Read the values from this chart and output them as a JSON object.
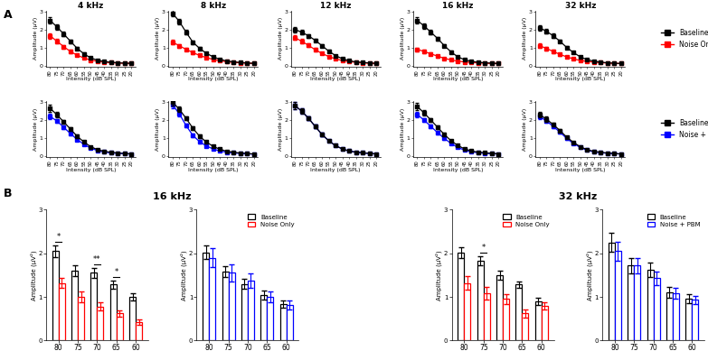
{
  "freqs_top": [
    "4 kHz",
    "8 kHz",
    "12 kHz",
    "16 kHz",
    "32 kHz"
  ],
  "intensity_x": [
    80,
    75,
    70,
    65,
    60,
    55,
    50,
    45,
    40,
    35,
    30,
    25,
    20
  ],
  "row1_baseline": [
    [
      2.5,
      2.15,
      1.75,
      1.35,
      0.95,
      0.65,
      0.42,
      0.3,
      0.22,
      0.18,
      0.15,
      0.13,
      0.12
    ],
    [
      2.9,
      2.45,
      1.85,
      1.3,
      0.95,
      0.68,
      0.48,
      0.35,
      0.25,
      0.2,
      0.17,
      0.14,
      0.12
    ],
    [
      2.0,
      1.85,
      1.65,
      1.4,
      1.1,
      0.8,
      0.55,
      0.38,
      0.27,
      0.2,
      0.17,
      0.14,
      0.12
    ],
    [
      2.5,
      2.2,
      1.85,
      1.5,
      1.1,
      0.75,
      0.48,
      0.32,
      0.23,
      0.18,
      0.15,
      0.13,
      0.11
    ],
    [
      2.1,
      1.9,
      1.65,
      1.35,
      1.0,
      0.72,
      0.48,
      0.33,
      0.24,
      0.19,
      0.15,
      0.13,
      0.11
    ]
  ],
  "row1_noise": [
    [
      1.65,
      1.35,
      1.05,
      0.78,
      0.57,
      0.42,
      0.3,
      0.24,
      0.19,
      0.16,
      0.14,
      0.13,
      0.12
    ],
    [
      1.3,
      1.1,
      0.9,
      0.72,
      0.56,
      0.44,
      0.34,
      0.27,
      0.21,
      0.18,
      0.15,
      0.13,
      0.12
    ],
    [
      1.55,
      1.35,
      1.12,
      0.88,
      0.67,
      0.5,
      0.37,
      0.28,
      0.22,
      0.18,
      0.15,
      0.13,
      0.12
    ],
    [
      0.9,
      0.78,
      0.65,
      0.52,
      0.4,
      0.31,
      0.24,
      0.2,
      0.17,
      0.15,
      0.13,
      0.12,
      0.11
    ],
    [
      1.1,
      0.95,
      0.78,
      0.62,
      0.48,
      0.37,
      0.28,
      0.23,
      0.19,
      0.16,
      0.14,
      0.12,
      0.11
    ]
  ],
  "row1_baseline_err": [
    [
      0.18,
      0.15,
      0.12,
      0.1,
      0.08,
      0.06,
      0.04,
      0.03,
      0.02,
      0.02,
      0.02,
      0.01,
      0.01
    ],
    [
      0.18,
      0.15,
      0.12,
      0.1,
      0.08,
      0.06,
      0.04,
      0.03,
      0.02,
      0.02,
      0.01,
      0.01,
      0.01
    ],
    [
      0.15,
      0.12,
      0.1,
      0.09,
      0.07,
      0.06,
      0.04,
      0.03,
      0.02,
      0.02,
      0.01,
      0.01,
      0.01
    ],
    [
      0.18,
      0.15,
      0.12,
      0.1,
      0.08,
      0.06,
      0.04,
      0.03,
      0.02,
      0.02,
      0.01,
      0.01,
      0.01
    ],
    [
      0.15,
      0.13,
      0.11,
      0.09,
      0.07,
      0.05,
      0.04,
      0.03,
      0.02,
      0.02,
      0.01,
      0.01,
      0.01
    ]
  ],
  "row1_noise_err": [
    [
      0.15,
      0.12,
      0.1,
      0.08,
      0.06,
      0.05,
      0.04,
      0.03,
      0.02,
      0.02,
      0.01,
      0.01,
      0.01
    ],
    [
      0.12,
      0.1,
      0.09,
      0.07,
      0.06,
      0.05,
      0.04,
      0.03,
      0.02,
      0.02,
      0.01,
      0.01,
      0.01
    ],
    [
      0.14,
      0.12,
      0.1,
      0.08,
      0.06,
      0.05,
      0.04,
      0.03,
      0.02,
      0.02,
      0.01,
      0.01,
      0.01
    ],
    [
      0.1,
      0.09,
      0.08,
      0.07,
      0.05,
      0.04,
      0.03,
      0.02,
      0.02,
      0.01,
      0.01,
      0.01,
      0.01
    ],
    [
      0.12,
      0.1,
      0.09,
      0.07,
      0.06,
      0.05,
      0.04,
      0.03,
      0.02,
      0.02,
      0.01,
      0.01,
      0.01
    ]
  ],
  "row2_baseline": [
    [
      2.65,
      2.3,
      1.9,
      1.5,
      1.1,
      0.78,
      0.52,
      0.36,
      0.26,
      0.21,
      0.17,
      0.14,
      0.12
    ],
    [
      3.0,
      2.6,
      2.1,
      1.55,
      1.1,
      0.78,
      0.54,
      0.38,
      0.27,
      0.21,
      0.17,
      0.14,
      0.12
    ],
    [
      2.8,
      2.5,
      2.1,
      1.65,
      1.2,
      0.85,
      0.58,
      0.4,
      0.28,
      0.22,
      0.18,
      0.15,
      0.12
    ],
    [
      2.75,
      2.4,
      2.0,
      1.6,
      1.2,
      0.85,
      0.58,
      0.4,
      0.28,
      0.22,
      0.18,
      0.15,
      0.12
    ],
    [
      2.3,
      2.05,
      1.75,
      1.42,
      1.05,
      0.76,
      0.52,
      0.36,
      0.26,
      0.21,
      0.17,
      0.14,
      0.12
    ]
  ],
  "row2_pbm": [
    [
      2.2,
      1.95,
      1.6,
      1.25,
      0.92,
      0.65,
      0.44,
      0.31,
      0.23,
      0.18,
      0.16,
      0.14,
      0.12
    ],
    [
      2.85,
      2.35,
      1.7,
      1.15,
      0.8,
      0.56,
      0.4,
      0.28,
      0.22,
      0.18,
      0.15,
      0.13,
      0.11
    ],
    [
      2.8,
      2.5,
      2.1,
      1.65,
      1.2,
      0.85,
      0.58,
      0.4,
      0.28,
      0.22,
      0.18,
      0.15,
      0.12
    ],
    [
      2.3,
      2.0,
      1.65,
      1.3,
      0.98,
      0.7,
      0.48,
      0.33,
      0.24,
      0.19,
      0.16,
      0.14,
      0.12
    ],
    [
      2.2,
      1.95,
      1.65,
      1.33,
      0.98,
      0.7,
      0.48,
      0.33,
      0.24,
      0.19,
      0.16,
      0.14,
      0.12
    ]
  ],
  "row2_baseline_err": [
    [
      0.18,
      0.15,
      0.12,
      0.1,
      0.08,
      0.06,
      0.04,
      0.03,
      0.02,
      0.02,
      0.01,
      0.01,
      0.01
    ],
    [
      0.18,
      0.15,
      0.12,
      0.1,
      0.08,
      0.06,
      0.04,
      0.03,
      0.02,
      0.02,
      0.01,
      0.01,
      0.01
    ],
    [
      0.18,
      0.15,
      0.12,
      0.1,
      0.08,
      0.06,
      0.04,
      0.03,
      0.02,
      0.02,
      0.01,
      0.01,
      0.01
    ],
    [
      0.18,
      0.15,
      0.12,
      0.1,
      0.08,
      0.06,
      0.04,
      0.03,
      0.02,
      0.02,
      0.01,
      0.01,
      0.01
    ],
    [
      0.15,
      0.13,
      0.11,
      0.09,
      0.07,
      0.05,
      0.04,
      0.03,
      0.02,
      0.02,
      0.01,
      0.01,
      0.01
    ]
  ],
  "row2_pbm_err": [
    [
      0.15,
      0.12,
      0.1,
      0.08,
      0.06,
      0.05,
      0.04,
      0.03,
      0.02,
      0.02,
      0.01,
      0.01,
      0.01
    ],
    [
      0.18,
      0.15,
      0.12,
      0.1,
      0.08,
      0.06,
      0.04,
      0.03,
      0.02,
      0.02,
      0.01,
      0.01,
      0.01
    ],
    [
      0.18,
      0.15,
      0.12,
      0.1,
      0.08,
      0.06,
      0.04,
      0.03,
      0.02,
      0.02,
      0.01,
      0.01,
      0.01
    ],
    [
      0.15,
      0.12,
      0.1,
      0.08,
      0.06,
      0.05,
      0.04,
      0.03,
      0.02,
      0.02,
      0.01,
      0.01,
      0.01
    ],
    [
      0.15,
      0.12,
      0.1,
      0.08,
      0.06,
      0.05,
      0.04,
      0.03,
      0.02,
      0.02,
      0.01,
      0.01,
      0.01
    ]
  ],
  "bar_intensities": [
    80,
    75,
    70,
    65,
    60
  ],
  "bar16_baseline": [
    2.05,
    1.6,
    1.55,
    1.28,
    1.0
  ],
  "bar16_noise": [
    1.32,
    1.0,
    0.78,
    0.62,
    0.42
  ],
  "bar16_baseline_err": [
    0.14,
    0.12,
    0.12,
    0.1,
    0.09
  ],
  "bar16_noise_err": [
    0.12,
    0.12,
    0.1,
    0.08,
    0.07
  ],
  "bar16_baseline_pbm": [
    2.02,
    1.58,
    1.3,
    1.04,
    0.84
  ],
  "bar16_pbm": [
    1.9,
    1.55,
    1.37,
    1.0,
    0.82
  ],
  "bar16_baseline_pbm_err": [
    0.15,
    0.13,
    0.11,
    0.1,
    0.08
  ],
  "bar16_pbm_err": [
    0.22,
    0.19,
    0.16,
    0.13,
    0.1
  ],
  "bar32_baseline": [
    2.02,
    1.83,
    1.5,
    1.28,
    0.9
  ],
  "bar32_noise": [
    1.32,
    1.08,
    0.95,
    0.62,
    0.8
  ],
  "bar32_baseline_err": [
    0.12,
    0.1,
    0.1,
    0.08,
    0.08
  ],
  "bar32_noise_err": [
    0.15,
    0.15,
    0.12,
    0.1,
    0.08
  ],
  "bar32_baseline_pbm": [
    2.25,
    1.72,
    1.62,
    1.1,
    0.96
  ],
  "bar32_pbm": [
    2.05,
    1.72,
    1.43,
    1.08,
    0.93
  ],
  "bar32_baseline_pbm_err": [
    0.22,
    0.18,
    0.16,
    0.13,
    0.1
  ],
  "bar32_pbm_err": [
    0.22,
    0.18,
    0.16,
    0.13,
    0.1
  ],
  "color_black": "#000000",
  "color_red": "#FF0000",
  "color_blue": "#0000FF"
}
